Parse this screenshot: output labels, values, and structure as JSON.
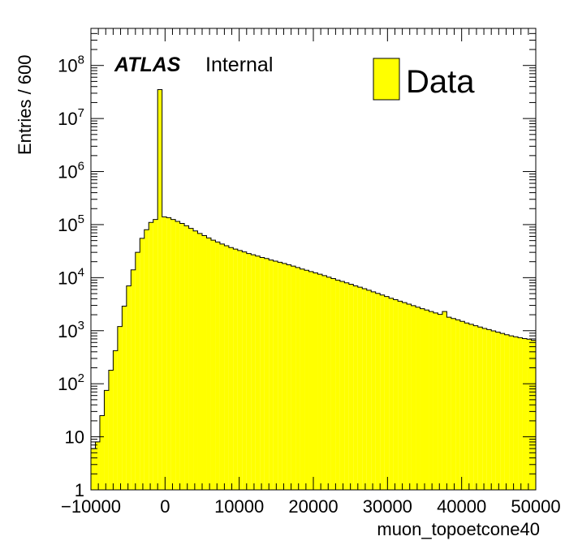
{
  "chart_data": {
    "type": "histogram",
    "experiment_label": "ATLAS",
    "status_label": "Internal",
    "xlabel": "muon_topoetcone40",
    "ylabel": "Entries / 600",
    "xlim": [
      -10000,
      50000
    ],
    "ylim": [
      1,
      500000000
    ],
    "y_scale": "log",
    "bin_width": 600,
    "x_ticks": [
      -10000,
      0,
      10000,
      20000,
      30000,
      40000,
      50000
    ],
    "x_tick_labels": [
      "−10000",
      "0",
      "10000",
      "20000",
      "30000",
      "40000",
      "50000"
    ],
    "y_ticks": [
      {
        "value": 1,
        "base": "1",
        "exp": ""
      },
      {
        "value": 10,
        "base": "10",
        "exp": ""
      },
      {
        "value": 100,
        "base": "10",
        "exp": "2"
      },
      {
        "value": 1000,
        "base": "10",
        "exp": "3"
      },
      {
        "value": 10000,
        "base": "10",
        "exp": "4"
      },
      {
        "value": 100000,
        "base": "10",
        "exp": "5"
      },
      {
        "value": 1000000,
        "base": "10",
        "exp": "6"
      },
      {
        "value": 10000000,
        "base": "10",
        "exp": "7"
      },
      {
        "value": 100000000,
        "base": "10",
        "exp": "8"
      }
    ],
    "legend": {
      "placement": "top-right",
      "entries": [
        "Data"
      ]
    },
    "fill_color": "#ffff00",
    "edge_color": "#000000",
    "series": [
      {
        "name": "Data",
        "bin_edges_start": -10000,
        "values": [
          6,
          8,
          25,
          75,
          180,
          420,
          1200,
          2900,
          7000,
          14000,
          30000,
          55000,
          80000,
          110000,
          125000,
          35000000,
          140000,
          135000,
          125000,
          115000,
          105000,
          95000,
          85000,
          76000,
          68000,
          62000,
          56000,
          51000,
          47000,
          43000,
          40000,
          37000,
          34500,
          32500,
          30500,
          28500,
          27000,
          25500,
          24000,
          23000,
          21500,
          20500,
          19500,
          18500,
          17500,
          16500,
          15500,
          14500,
          13800,
          13000,
          12300,
          11600,
          10900,
          10200,
          9600,
          9000,
          8500,
          8000,
          7500,
          7000,
          6600,
          6200,
          5800,
          5400,
          5050,
          4700,
          4400,
          4100,
          3850,
          3600,
          3380,
          3170,
          2970,
          2780,
          2600,
          2450,
          2300,
          2160,
          2030,
          2300,
          1800,
          1700,
          1600,
          1500,
          1400,
          1320,
          1240,
          1170,
          1100,
          1050,
          990,
          940,
          890,
          840,
          800,
          770,
          740,
          710,
          690,
          660
        ]
      }
    ]
  }
}
